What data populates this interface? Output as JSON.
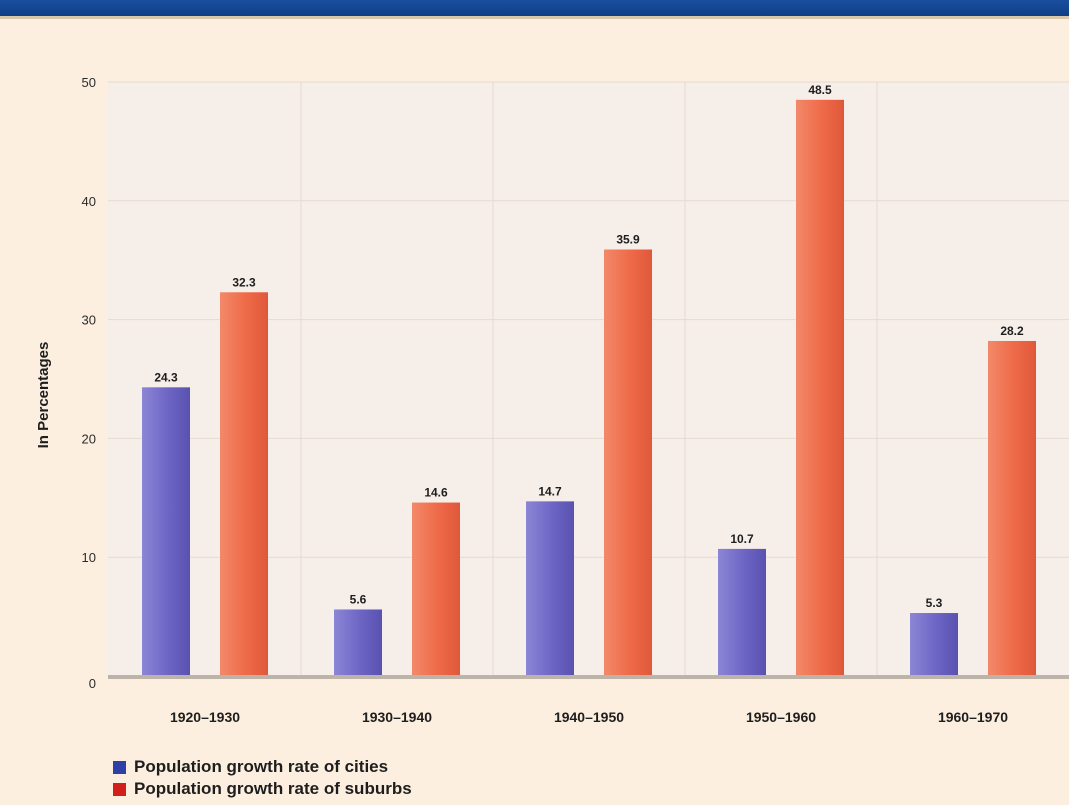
{
  "colors": {
    "background": "#fcefe0",
    "plot_background": "#f6eee8",
    "banner": "#1a4f9e",
    "cities_bar": "#6d65c4",
    "suburbs_bar": "#ee6a48"
  },
  "legend": {
    "items": [
      {
        "label": "Population growth rate of cities",
        "color": "#2f3fa6"
      },
      {
        "label": "Population growth rate of suburbs",
        "color": "#d0201c"
      }
    ]
  },
  "chart_data": {
    "type": "bar",
    "title": "",
    "xlabel": "",
    "ylabel": "In Percentages",
    "categories": [
      "1920–1930",
      "1930–1940",
      "1940–1950",
      "1950–1960",
      "1960–1970"
    ],
    "series": [
      {
        "name": "Population growth rate of cities",
        "values": [
          24.3,
          5.6,
          14.7,
          10.7,
          5.3
        ],
        "labels": [
          "24.3",
          "5.6",
          "14.7",
          "10.7",
          "5.3"
        ]
      },
      {
        "name": "Population growth rate of suburbs",
        "values": [
          32.3,
          14.6,
          35.9,
          48.5,
          28.2
        ],
        "labels": [
          "32.3",
          "14.6",
          "35.9",
          "48.5",
          "28.2"
        ]
      }
    ],
    "ylim": [
      0,
      50
    ],
    "yticks": [
      0,
      10,
      20,
      30,
      40,
      50
    ],
    "grid": true,
    "legend_position": "bottom-left"
  }
}
